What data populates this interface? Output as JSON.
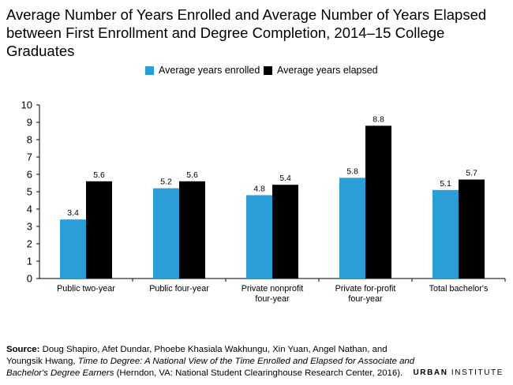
{
  "title": "Average Number of Years Enrolled and Average Number of Years Elapsed between First Enrollment and Degree Completion, 2014–15 College Graduates",
  "colors": {
    "enrolled": "#2b9ed8",
    "elapsed": "#000000",
    "axis": "#000000"
  },
  "chart_data": {
    "type": "bar",
    "title": "Average Number of Years Enrolled and Average Number of Years Elapsed between First Enrollment and Degree Completion, 2014–15 College Graduates",
    "categories": [
      [
        "Public two-year"
      ],
      [
        "Public four-year"
      ],
      [
        "Private nonprofit",
        "four-year"
      ],
      [
        "Private for-profit",
        "four-year"
      ],
      [
        "Total bachelor's"
      ]
    ],
    "series": [
      {
        "name": "Average years enrolled",
        "values": [
          3.4,
          5.2,
          4.8,
          5.8,
          5.1
        ]
      },
      {
        "name": "Average years elapsed",
        "values": [
          5.6,
          5.6,
          5.4,
          8.8,
          5.7
        ]
      }
    ],
    "ylim": [
      0,
      10
    ],
    "yticks": [
      0,
      1,
      2,
      3,
      4,
      5,
      6,
      7,
      8,
      9,
      10
    ],
    "grid": false,
    "legend": "top-center",
    "data_labels": true
  },
  "source": {
    "label": "Source:",
    "authors": " Doug Shapiro, Afet Dundar, Phoebe Khasiala Wakhungu, Xin Yuan, Angel Nathan, and Youngsik Hwang, ",
    "work": "Time to Degree: A National View of the Time Enrolled and Elapsed for Associate and Bachelor's Degree Earners",
    "publisher": " (Herndon, VA: National Student Clearinghouse Research Center, 2016)."
  },
  "brand": {
    "first": "URBAN",
    "second": " INSTITUTE"
  }
}
